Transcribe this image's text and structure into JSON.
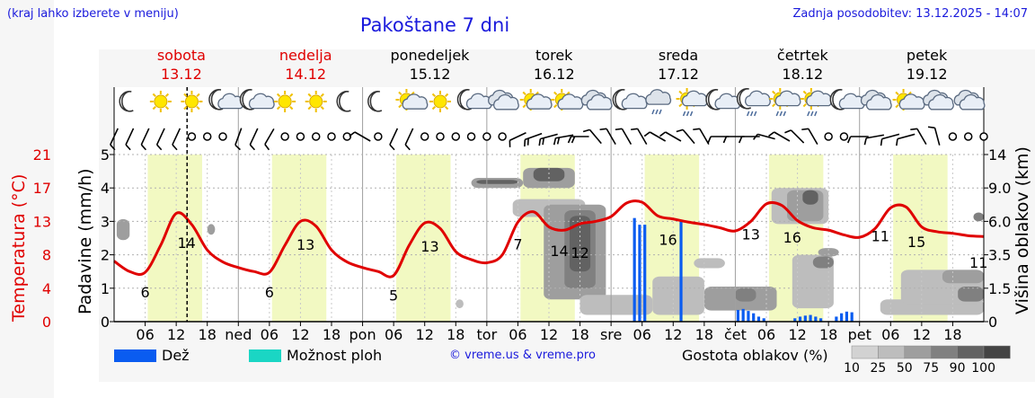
{
  "header": {
    "note": "(kraj lahko izberete v meniju)",
    "title": "Pakoštane 7 dni",
    "updated": "Zadnja posodobitev: 13.12.2025 - 14:07"
  },
  "days": [
    {
      "name": "sobota",
      "date": "13.12",
      "color": "#e00000"
    },
    {
      "name": "nedelja",
      "date": "14.12",
      "color": "#e00000"
    },
    {
      "name": "ponedeljek",
      "date": "15.12",
      "color": "#000000"
    },
    {
      "name": "torek",
      "date": "16.12",
      "color": "#000000"
    },
    {
      "name": "sreda",
      "date": "17.12",
      "color": "#000000"
    },
    {
      "name": "četrtek",
      "date": "18.12",
      "color": "#000000"
    },
    {
      "name": "petek",
      "date": "19.12",
      "color": "#000000"
    }
  ],
  "legend": {
    "rain": "Dež",
    "storm": "Možnost ploh",
    "copyright": "© vreme.us & vreme.pro",
    "density_title": "Gostota oblakov (%)",
    "density_levels": [
      "10",
      "25",
      "50",
      "75",
      "90",
      "100"
    ],
    "rain_color": "#0a5cf0",
    "storm_color": "#1ad6c4"
  },
  "chart_data": {
    "type": "line",
    "title": "Pakoštane 7 dni",
    "xlabel": "",
    "x_tick_labels": [
      "06",
      "12",
      "18",
      "ned",
      "06",
      "12",
      "18",
      "pon",
      "06",
      "12",
      "18",
      "tor",
      "06",
      "12",
      "18",
      "sre",
      "06",
      "12",
      "18",
      "čet",
      "06",
      "12",
      "18",
      "pet",
      "06",
      "12",
      "18"
    ],
    "axes": {
      "temperature": {
        "label": "Temperatura (°C)",
        "ticks": [
          "0",
          "4",
          "8",
          "13",
          "17",
          "21"
        ],
        "color": "#e00000"
      },
      "precipitation": {
        "label": "Padavine (mm/h)",
        "ticks": [
          "0",
          "1",
          "2",
          "3",
          "4",
          "5"
        ],
        "ylim": [
          0,
          5
        ]
      },
      "cloud_height": {
        "label": "Višina oblakov (km)",
        "ticks": [
          "0",
          "1.5",
          "3.5",
          "6.0",
          "9.0",
          "14"
        ]
      }
    },
    "temperature_series": {
      "name": "Temperatura",
      "color": "#e00000",
      "hours": [
        0,
        3,
        6,
        9,
        12,
        15,
        18,
        21,
        24,
        27,
        30,
        33,
        36,
        39,
        42,
        45,
        48,
        51,
        54,
        57,
        60,
        63,
        66,
        69,
        72,
        75,
        78,
        81,
        84,
        87,
        90,
        93,
        96,
        99,
        102,
        105,
        108,
        111,
        114,
        117,
        120,
        123,
        126,
        129,
        132,
        135,
        138,
        141,
        144,
        147,
        150,
        153,
        156,
        159,
        162,
        165,
        168
      ],
      "values": [
        7.6,
        6.3,
        6.2,
        9.6,
        13.6,
        12.2,
        9.0,
        7.5,
        6.8,
        6.3,
        6.2,
        9.6,
        12.6,
        12.0,
        9.0,
        7.5,
        6.8,
        6.3,
        5.8,
        9.6,
        12.4,
        11.7,
        8.8,
        7.8,
        7.4,
        8.4,
        12.5,
        13.8,
        11.9,
        11.5,
        12.3,
        12.6,
        13.2,
        14.9,
        15.0,
        13.3,
        12.9,
        12.5,
        12.2,
        11.8,
        11.4,
        12.6,
        14.8,
        14.6,
        12.7,
        11.8,
        11.5,
        10.9,
        10.6,
        11.7,
        14.3,
        14.4,
        11.9,
        11.3,
        11.1,
        10.8,
        10.7
      ]
    },
    "temperature_labels": [
      {
        "hour": 6,
        "text": "6"
      },
      {
        "hour": 14,
        "text": "14"
      },
      {
        "hour": 30,
        "text": "6"
      },
      {
        "hour": 37,
        "text": "13"
      },
      {
        "hour": 54,
        "text": "5"
      },
      {
        "hour": 61,
        "text": "13"
      },
      {
        "hour": 78,
        "text": "7"
      },
      {
        "hour": 86,
        "text": "14"
      },
      {
        "hour": 90,
        "text": "12"
      },
      {
        "hour": 107,
        "text": "16"
      },
      {
        "hour": 123,
        "text": "13"
      },
      {
        "hour": 131,
        "text": "16"
      },
      {
        "hour": 148,
        "text": "11"
      },
      {
        "hour": 155,
        "text": "15"
      },
      {
        "hour": 167,
        "text": "11"
      }
    ],
    "rain_bars": [
      {
        "hour": 100.5,
        "mm": 3.1
      },
      {
        "hour": 101.5,
        "mm": 2.9
      },
      {
        "hour": 102.5,
        "mm": 2.9
      },
      {
        "hour": 109.5,
        "mm": 3.0
      },
      {
        "hour": 120.5,
        "mm": 0.35
      },
      {
        "hour": 121.5,
        "mm": 0.38
      },
      {
        "hour": 122.5,
        "mm": 0.32
      },
      {
        "hour": 123.5,
        "mm": 0.25
      },
      {
        "hour": 124.5,
        "mm": 0.15
      },
      {
        "hour": 125.5,
        "mm": 0.1
      },
      {
        "hour": 131.5,
        "mm": 0.1
      },
      {
        "hour": 132.5,
        "mm": 0.15
      },
      {
        "hour": 133.5,
        "mm": 0.18
      },
      {
        "hour": 134.5,
        "mm": 0.2
      },
      {
        "hour": 135.5,
        "mm": 0.15
      },
      {
        "hour": 136.5,
        "mm": 0.1
      },
      {
        "hour": 139.5,
        "mm": 0.15
      },
      {
        "hour": 140.5,
        "mm": 0.25
      },
      {
        "hour": 141.5,
        "mm": 0.3
      },
      {
        "hour": 142.5,
        "mm": 0.28
      }
    ],
    "clouds": [
      {
        "h0": 0.5,
        "h1": 3,
        "k0": 4.6,
        "k1": 6.2,
        "d": 50
      },
      {
        "h0": 18,
        "h1": 19.5,
        "k0": 5.0,
        "k1": 5.8,
        "d": 50
      },
      {
        "h0": 66,
        "h1": 67.5,
        "k0": 0.6,
        "k1": 1.0,
        "d": 25
      },
      {
        "h0": 69,
        "h1": 79,
        "k0": 9.0,
        "k1": 10.5,
        "d": 50
      },
      {
        "h0": 70,
        "h1": 78,
        "k0": 9.6,
        "k1": 10.2,
        "d": 90
      },
      {
        "h0": 77,
        "h1": 91,
        "k0": 6.4,
        "k1": 8.0,
        "d": 25
      },
      {
        "h0": 79,
        "h1": 89,
        "k0": 9.0,
        "k1": 12.0,
        "d": 50
      },
      {
        "h0": 81,
        "h1": 87,
        "k0": 10.0,
        "k1": 12.0,
        "d": 90
      },
      {
        "h0": 83,
        "h1": 95,
        "k0": 1.0,
        "k1": 7.5,
        "d": 50
      },
      {
        "h0": 87,
        "h1": 93,
        "k0": 1.5,
        "k1": 7.0,
        "d": 75
      },
      {
        "h0": 88,
        "h1": 92,
        "k0": 2.5,
        "k1": 6.5,
        "d": 90
      },
      {
        "h0": 90,
        "h1": 104,
        "k0": 0.3,
        "k1": 1.2,
        "d": 25
      },
      {
        "h0": 104,
        "h1": 114,
        "k0": 0.3,
        "k1": 2.2,
        "d": 25
      },
      {
        "h0": 112,
        "h1": 118,
        "k0": 2.7,
        "k1": 3.3,
        "d": 25
      },
      {
        "h0": 114,
        "h1": 128,
        "k0": 0.5,
        "k1": 1.6,
        "d": 50
      },
      {
        "h0": 120,
        "h1": 124,
        "k0": 0.9,
        "k1": 1.5,
        "d": 75
      },
      {
        "h0": 127,
        "h1": 138,
        "k0": 5.8,
        "k1": 9.0,
        "d": 25
      },
      {
        "h0": 130,
        "h1": 137,
        "k0": 6.0,
        "k1": 8.8,
        "d": 50
      },
      {
        "h0": 133,
        "h1": 136,
        "k0": 7.5,
        "k1": 8.8,
        "d": 90
      },
      {
        "h0": 131,
        "h1": 139,
        "k0": 0.6,
        "k1": 3.5,
        "d": 25
      },
      {
        "h0": 135,
        "h1": 139,
        "k0": 2.7,
        "k1": 3.4,
        "d": 75
      },
      {
        "h0": 136,
        "h1": 140,
        "k0": 3.4,
        "k1": 4.0,
        "d": 50
      },
      {
        "h0": 148,
        "h1": 168,
        "k0": 0.3,
        "k1": 1.0,
        "d": 25
      },
      {
        "h0": 152,
        "h1": 168,
        "k0": 0.8,
        "k1": 2.6,
        "d": 25
      },
      {
        "h0": 160,
        "h1": 168,
        "k0": 1.8,
        "k1": 2.6,
        "d": 50
      },
      {
        "h0": 163,
        "h1": 168,
        "k0": 0.9,
        "k1": 1.6,
        "d": 75
      },
      {
        "h0": 166,
        "h1": 168,
        "k0": 6.0,
        "k1": 6.8,
        "d": 75
      }
    ],
    "daylight_bands": [
      {
        "start": 6.5,
        "end": 17
      },
      {
        "start": 30.5,
        "end": 41
      },
      {
        "start": 54.5,
        "end": 65
      },
      {
        "start": 78.5,
        "end": 89
      },
      {
        "start": 102.5,
        "end": 113
      },
      {
        "start": 126.5,
        "end": 137
      },
      {
        "start": 150.5,
        "end": 161
      }
    ],
    "current_time_hour": 14.1,
    "weather_icons": [
      {
        "hour": 3,
        "icon": "moon"
      },
      {
        "hour": 9,
        "icon": "sun"
      },
      {
        "hour": 15,
        "icon": "sun"
      },
      {
        "hour": 21,
        "icon": "moon-cloud"
      },
      {
        "hour": 27,
        "icon": "moon-cloud"
      },
      {
        "hour": 33,
        "icon": "sun"
      },
      {
        "hour": 39,
        "icon": "sun"
      },
      {
        "hour": 45,
        "icon": "moon"
      },
      {
        "hour": 51,
        "icon": "moon"
      },
      {
        "hour": 57,
        "icon": "sun-cloud"
      },
      {
        "hour": 63,
        "icon": "sun"
      },
      {
        "hour": 69,
        "icon": "moon-cloud"
      },
      {
        "hour": 75,
        "icon": "cloud"
      },
      {
        "hour": 81,
        "icon": "sun-cloud"
      },
      {
        "hour": 87,
        "icon": "sun-cloud"
      },
      {
        "hour": 93,
        "icon": "cloud"
      },
      {
        "hour": 99,
        "icon": "moon-cloud"
      },
      {
        "hour": 105,
        "icon": "cloud-rain"
      },
      {
        "hour": 111,
        "icon": "sun-rain"
      },
      {
        "hour": 117,
        "icon": "moon-cloud"
      },
      {
        "hour": 123,
        "icon": "moon-rain"
      },
      {
        "hour": 129,
        "icon": "sun-rain"
      },
      {
        "hour": 135,
        "icon": "sun-rain"
      },
      {
        "hour": 141,
        "icon": "moon-cloud"
      },
      {
        "hour": 147,
        "icon": "cloud"
      },
      {
        "hour": 153,
        "icon": "sun-cloud"
      },
      {
        "hour": 159,
        "icon": "cloud"
      },
      {
        "hour": 165,
        "icon": "cloud"
      }
    ],
    "wind_symbols": [
      {
        "hour": 0,
        "dir": 205,
        "barbs": 1
      },
      {
        "hour": 3,
        "dir": 205,
        "barbs": 1
      },
      {
        "hour": 6,
        "dir": 205,
        "barbs": 1
      },
      {
        "hour": 9,
        "dir": 205,
        "barbs": 1
      },
      {
        "hour": 12,
        "dir": 205,
        "barbs": 1
      },
      {
        "hour": 15,
        "dir": 0,
        "barbs": 0
      },
      {
        "hour": 18,
        "dir": 0,
        "barbs": 0
      },
      {
        "hour": 21,
        "dir": 0,
        "barbs": 0
      },
      {
        "hour": 24,
        "dir": 200,
        "barbs": 1
      },
      {
        "hour": 27,
        "dir": 205,
        "barbs": 1
      },
      {
        "hour": 30,
        "dir": 210,
        "barbs": 1
      },
      {
        "hour": 33,
        "dir": 0,
        "barbs": 0
      },
      {
        "hour": 36,
        "dir": 0,
        "barbs": 0
      },
      {
        "hour": 39,
        "dir": 0,
        "barbs": 0
      },
      {
        "hour": 42,
        "dir": 0,
        "barbs": 0
      },
      {
        "hour": 45,
        "dir": 0,
        "barbs": 0
      },
      {
        "hour": 48,
        "dir": 300,
        "barbs": 1
      },
      {
        "hour": 51,
        "dir": 0,
        "barbs": 0
      },
      {
        "hour": 54,
        "dir": 205,
        "barbs": 1
      },
      {
        "hour": 57,
        "dir": 205,
        "barbs": 1
      },
      {
        "hour": 60,
        "dir": 0,
        "barbs": 0
      },
      {
        "hour": 63,
        "dir": 0,
        "barbs": 0
      },
      {
        "hour": 66,
        "dir": 0,
        "barbs": 0
      },
      {
        "hour": 69,
        "dir": 0,
        "barbs": 0
      },
      {
        "hour": 72,
        "dir": 0,
        "barbs": 0
      },
      {
        "hour": 75,
        "dir": 0,
        "barbs": 0
      },
      {
        "hour": 78,
        "dir": 245,
        "barbs": 1
      },
      {
        "hour": 81,
        "dir": 250,
        "barbs": 2
      },
      {
        "hour": 84,
        "dir": 255,
        "barbs": 2
      },
      {
        "hour": 87,
        "dir": 260,
        "barbs": 2
      },
      {
        "hour": 90,
        "dir": 270,
        "barbs": 2
      },
      {
        "hour": 93,
        "dir": 320,
        "barbs": 1
      },
      {
        "hour": 96,
        "dir": 330,
        "barbs": 1
      },
      {
        "hour": 99,
        "dir": 330,
        "barbs": 1
      },
      {
        "hour": 102,
        "dir": 330,
        "barbs": 1
      },
      {
        "hour": 105,
        "dir": 300,
        "barbs": 1
      },
      {
        "hour": 108,
        "dir": 300,
        "barbs": 1
      },
      {
        "hour": 111,
        "dir": 320,
        "barbs": 1
      },
      {
        "hour": 114,
        "dir": 330,
        "barbs": 1
      },
      {
        "hour": 117,
        "dir": 270,
        "barbs": 1
      },
      {
        "hour": 120,
        "dir": 270,
        "barbs": 1
      },
      {
        "hour": 123,
        "dir": 270,
        "barbs": 1
      },
      {
        "hour": 126,
        "dir": 285,
        "barbs": 1
      },
      {
        "hour": 129,
        "dir": 300,
        "barbs": 1
      },
      {
        "hour": 132,
        "dir": 315,
        "barbs": 1
      },
      {
        "hour": 135,
        "dir": 330,
        "barbs": 1
      },
      {
        "hour": 138,
        "dir": 0,
        "barbs": 0
      },
      {
        "hour": 141,
        "dir": 0,
        "barbs": 0
      },
      {
        "hour": 144,
        "dir": 270,
        "barbs": 1
      },
      {
        "hour": 147,
        "dir": 260,
        "barbs": 1
      },
      {
        "hour": 150,
        "dir": 255,
        "barbs": 1
      },
      {
        "hour": 153,
        "dir": 255,
        "barbs": 1
      },
      {
        "hour": 156,
        "dir": 330,
        "barbs": 1
      },
      {
        "hour": 159,
        "dir": 345,
        "barbs": 1
      },
      {
        "hour": 162,
        "dir": 0,
        "barbs": 0
      },
      {
        "hour": 165,
        "dir": 0,
        "barbs": 0
      },
      {
        "hour": 168,
        "dir": 0,
        "barbs": 0
      }
    ]
  }
}
